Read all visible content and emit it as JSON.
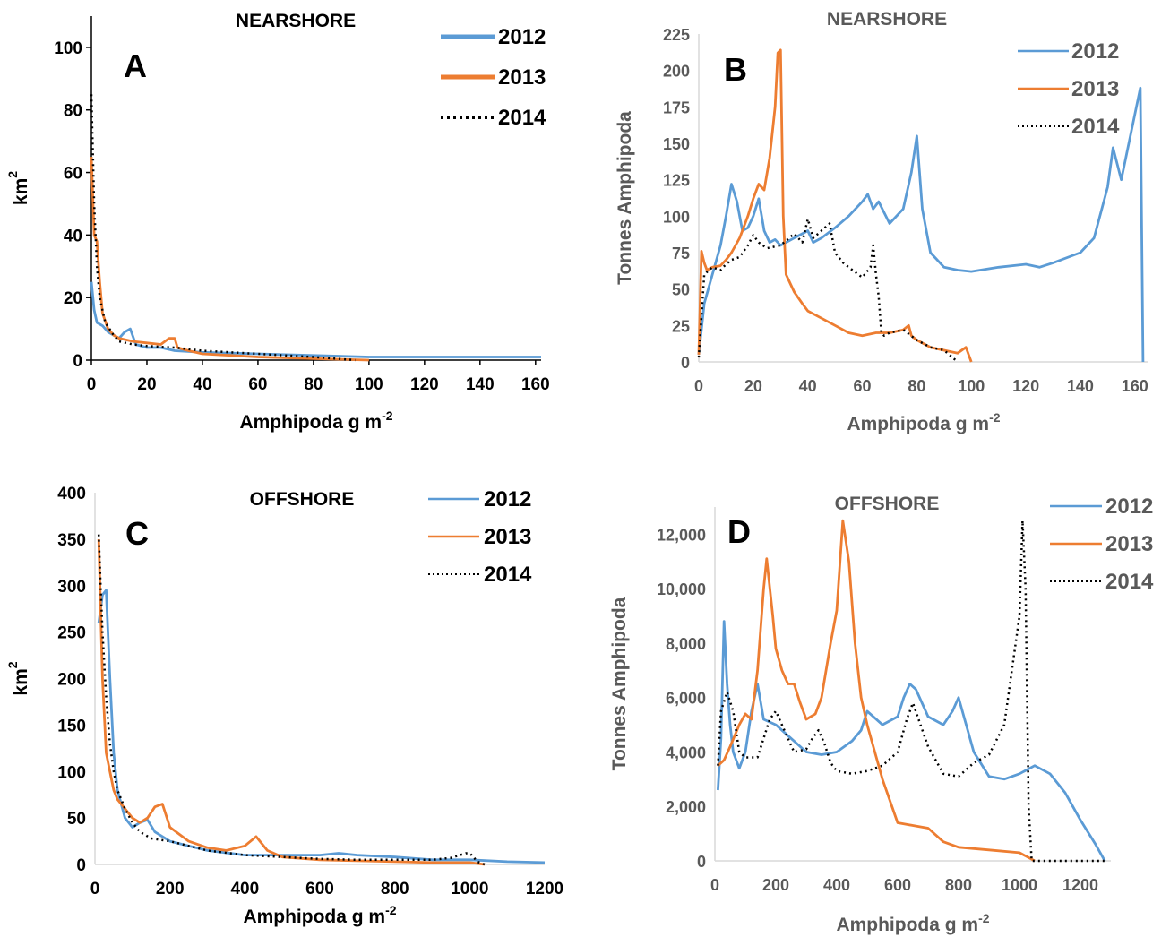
{
  "colors": {
    "s2012": "#5b9bd5",
    "s2013": "#ed7d31",
    "s2014": "#000000"
  },
  "chart_data": [
    {
      "id": "A",
      "type": "line",
      "panel_letter": "A",
      "title": "NEARSHORE",
      "xlabel": "Amphipoda g m",
      "xlabel_sup": "-2",
      "ylabel": "km",
      "ylabel_sup": "2",
      "xlim": [
        0,
        162
      ],
      "ylim": [
        0,
        110
      ],
      "xticks": [
        0,
        20,
        40,
        60,
        80,
        100,
        120,
        140,
        160
      ],
      "xtick_labels": [
        "0",
        "20",
        "40",
        "60",
        "80",
        "100",
        "120",
        "140",
        "160"
      ],
      "yticks": [
        0,
        20,
        40,
        60,
        80,
        100
      ],
      "ytick_labels": [
        "0",
        "20",
        "40",
        "60",
        "80",
        "100"
      ],
      "grid": false,
      "legend": "top-right",
      "series": [
        {
          "name": "2012",
          "style": "solid",
          "color": "#5b9bd5",
          "x": [
            0,
            1,
            2,
            4,
            6,
            8,
            10,
            12,
            14,
            16,
            20,
            25,
            30,
            40,
            60,
            80,
            100,
            120,
            140,
            162
          ],
          "y": [
            25,
            16,
            12,
            11,
            9,
            8,
            7,
            9,
            10,
            5,
            4,
            4,
            3,
            2.5,
            2,
            1.5,
            1,
            1,
            1,
            1
          ]
        },
        {
          "name": "2013",
          "style": "solid",
          "color": "#ed7d31",
          "x": [
            0,
            1,
            2,
            3,
            4,
            6,
            8,
            10,
            15,
            20,
            25,
            28,
            30,
            31,
            35,
            40,
            60,
            80,
            100
          ],
          "y": [
            65,
            40,
            38,
            25,
            15,
            10,
            8,
            7,
            6,
            5.5,
            5,
            7,
            7,
            4,
            3,
            2,
            1,
            0.5,
            0
          ]
        },
        {
          "name": "2014",
          "style": "dotted",
          "color": "#000000",
          "x": [
            0,
            1,
            2,
            3,
            5,
            8,
            10,
            15,
            20,
            30,
            40,
            60,
            80,
            95
          ],
          "y": [
            85,
            50,
            30,
            20,
            12,
            8,
            6,
            5,
            4.5,
            4,
            3,
            2,
            1,
            0
          ]
        }
      ]
    },
    {
      "id": "B",
      "type": "line",
      "panel_letter": "B",
      "title": "NEARSHORE",
      "xlabel": "Amphipoda g m",
      "xlabel_sup": "-2",
      "ylabel": "Tonnes Amphipoda",
      "ylabel_sup": "",
      "xlim": [
        0,
        165
      ],
      "ylim": [
        0,
        225
      ],
      "xticks": [
        0,
        20,
        40,
        60,
        80,
        100,
        120,
        140,
        160
      ],
      "xtick_labels": [
        "0",
        "20",
        "40",
        "60",
        "80",
        "100",
        "120",
        "140",
        "160"
      ],
      "yticks": [
        0,
        25,
        50,
        75,
        100,
        125,
        150,
        175,
        200,
        225
      ],
      "ytick_labels": [
        "0",
        "25",
        "50",
        "75",
        "100",
        "125",
        "150",
        "175",
        "200",
        "225"
      ],
      "grid": false,
      "legend": "top-right",
      "series": [
        {
          "name": "2012",
          "style": "solid",
          "color": "#5b9bd5",
          "x": [
            0,
            2,
            5,
            8,
            10,
            12,
            14,
            16,
            18,
            20,
            22,
            24,
            26,
            28,
            30,
            35,
            40,
            42,
            45,
            50,
            55,
            60,
            62,
            64,
            66,
            70,
            75,
            78,
            80,
            82,
            85,
            90,
            95,
            100,
            110,
            120,
            125,
            130,
            140,
            145,
            150,
            152,
            155,
            160,
            162,
            163
          ],
          "y": [
            5,
            40,
            60,
            80,
            100,
            122,
            110,
            90,
            92,
            100,
            112,
            90,
            82,
            84,
            80,
            85,
            90,
            82,
            85,
            92,
            100,
            110,
            115,
            105,
            110,
            95,
            105,
            130,
            155,
            105,
            75,
            65,
            63,
            62,
            65,
            67,
            65,
            68,
            75,
            85,
            120,
            147,
            125,
            170,
            188,
            0
          ]
        },
        {
          "name": "2013",
          "style": "solid",
          "color": "#ed7d31",
          "x": [
            0,
            1,
            2,
            3,
            5,
            8,
            10,
            12,
            15,
            18,
            20,
            22,
            24,
            26,
            28,
            29,
            30,
            31,
            32,
            35,
            38,
            40,
            45,
            50,
            55,
            60,
            65,
            70,
            75,
            77,
            78,
            80,
            85,
            90,
            95,
            98,
            100
          ],
          "y": [
            5,
            76,
            68,
            63,
            65,
            66,
            70,
            75,
            85,
            100,
            112,
            122,
            118,
            140,
            175,
            212,
            214,
            100,
            60,
            48,
            40,
            35,
            30,
            25,
            20,
            18,
            20,
            20,
            22,
            25,
            18,
            15,
            10,
            8,
            6,
            10,
            0
          ]
        },
        {
          "name": "2014",
          "style": "dotted",
          "color": "#000000",
          "x": [
            0,
            2,
            5,
            8,
            10,
            12,
            15,
            18,
            20,
            22,
            25,
            30,
            35,
            38,
            40,
            42,
            45,
            48,
            50,
            53,
            55,
            60,
            63,
            64,
            65,
            66,
            67,
            68,
            70,
            75,
            80,
            85,
            90,
            95
          ],
          "y": [
            3,
            60,
            65,
            63,
            67,
            70,
            72,
            80,
            87,
            82,
            78,
            80,
            88,
            82,
            98,
            85,
            90,
            95,
            75,
            68,
            65,
            58,
            65,
            80,
            60,
            45,
            20,
            18,
            20,
            22,
            15,
            10,
            8,
            0
          ]
        }
      ]
    },
    {
      "id": "C",
      "type": "line",
      "panel_letter": "C",
      "title": "OFFSHORE",
      "xlabel": "Amphipoda g m",
      "xlabel_sup": "-2",
      "ylabel": "km",
      "ylabel_sup": "2",
      "xlim": [
        0,
        1200
      ],
      "ylim": [
        0,
        400
      ],
      "xticks": [
        0,
        200,
        400,
        600,
        800,
        1000,
        1200
      ],
      "xtick_labels": [
        "0",
        "200",
        "400",
        "600",
        "800",
        "1000",
        "1200"
      ],
      "yticks": [
        0,
        50,
        100,
        150,
        200,
        250,
        300,
        350,
        400
      ],
      "ytick_labels": [
        "0",
        "50",
        "100",
        "150",
        "200",
        "250",
        "300",
        "350",
        "400"
      ],
      "grid": false,
      "legend": "top-right",
      "series": [
        {
          "name": "2012",
          "style": "solid",
          "color": "#5b9bd5",
          "x": [
            10,
            20,
            30,
            40,
            50,
            60,
            80,
            100,
            120,
            140,
            160,
            200,
            250,
            300,
            400,
            500,
            600,
            650,
            700,
            800,
            900,
            1000,
            1100,
            1200
          ],
          "y": [
            260,
            290,
            295,
            200,
            120,
            80,
            50,
            40,
            45,
            48,
            35,
            25,
            20,
            15,
            10,
            10,
            10,
            12,
            10,
            8,
            5,
            5,
            3,
            2
          ]
        },
        {
          "name": "2013",
          "style": "solid",
          "color": "#ed7d31",
          "x": [
            10,
            20,
            30,
            40,
            50,
            60,
            80,
            100,
            120,
            140,
            160,
            180,
            200,
            250,
            300,
            350,
            400,
            430,
            460,
            500,
            600,
            700,
            800,
            900,
            1000,
            1040
          ],
          "y": [
            350,
            200,
            120,
            100,
            80,
            70,
            60,
            50,
            45,
            50,
            62,
            65,
            40,
            25,
            18,
            15,
            20,
            30,
            15,
            8,
            5,
            4,
            3,
            2,
            2,
            0
          ]
        },
        {
          "name": "2014",
          "style": "dotted",
          "color": "#000000",
          "x": [
            10,
            15,
            20,
            30,
            40,
            50,
            60,
            80,
            100,
            120,
            150,
            200,
            250,
            300,
            400,
            500,
            600,
            700,
            800,
            900,
            950,
            990,
            1000,
            1010,
            1020,
            1040
          ],
          "y": [
            355,
            300,
            250,
            180,
            130,
            100,
            80,
            60,
            45,
            35,
            28,
            25,
            20,
            15,
            10,
            8,
            6,
            5,
            5,
            5,
            7,
            12,
            12,
            8,
            3,
            0
          ]
        }
      ]
    },
    {
      "id": "D",
      "type": "line",
      "panel_letter": "D",
      "title": "OFFSHORE",
      "xlabel": "Amphipoda g m",
      "xlabel_sup": "-2",
      "ylabel": "Tonnes Amphipoda",
      "ylabel_sup": "",
      "xlim": [
        0,
        1300
      ],
      "ylim": [
        0,
        13000
      ],
      "xticks": [
        0,
        200,
        400,
        600,
        800,
        1000,
        1200
      ],
      "xtick_labels": [
        "0",
        "200",
        "400",
        "600",
        "800",
        "1000",
        "1200"
      ],
      "yticks": [
        0,
        2000,
        4000,
        6000,
        8000,
        10000,
        12000
      ],
      "ytick_labels": [
        "0",
        "2,000",
        "4,000",
        "6,000",
        "8,000",
        "10,000",
        "12,000"
      ],
      "grid": false,
      "legend": "top-right",
      "series": [
        {
          "name": "2012",
          "style": "solid",
          "color": "#5b9bd5",
          "x": [
            10,
            20,
            30,
            40,
            50,
            60,
            80,
            100,
            120,
            140,
            160,
            200,
            250,
            300,
            350,
            400,
            450,
            480,
            500,
            550,
            600,
            620,
            640,
            660,
            700,
            750,
            780,
            800,
            850,
            900,
            950,
            1000,
            1050,
            1100,
            1150,
            1200,
            1250,
            1280
          ],
          "y": [
            2600,
            4500,
            8800,
            6500,
            5000,
            4000,
            3400,
            4000,
            5500,
            6500,
            5200,
            5000,
            4500,
            4000,
            3900,
            4000,
            4400,
            4800,
            5500,
            5000,
            5300,
            6000,
            6500,
            6300,
            5300,
            5000,
            5500,
            6000,
            4000,
            3100,
            3000,
            3200,
            3500,
            3200,
            2500,
            1500,
            600,
            0
          ]
        },
        {
          "name": "2013",
          "style": "solid",
          "color": "#ed7d31",
          "x": [
            10,
            30,
            50,
            80,
            100,
            120,
            140,
            160,
            170,
            190,
            200,
            220,
            240,
            260,
            280,
            300,
            330,
            350,
            380,
            400,
            420,
            440,
            460,
            480,
            500,
            550,
            600,
            650,
            700,
            750,
            800,
            900,
            1000,
            1050
          ],
          "y": [
            3500,
            3700,
            4200,
            5000,
            5400,
            5200,
            7000,
            10000,
            11100,
            9000,
            7800,
            7000,
            6500,
            6500,
            5800,
            5200,
            5400,
            6000,
            8000,
            9200,
            12500,
            11000,
            8000,
            6000,
            5000,
            3000,
            1400,
            1300,
            1200,
            700,
            500,
            400,
            300,
            0
          ]
        },
        {
          "name": "2014",
          "style": "dotted",
          "color": "#000000",
          "x": [
            10,
            20,
            40,
            60,
            80,
            100,
            140,
            160,
            180,
            200,
            220,
            240,
            260,
            300,
            320,
            340,
            360,
            380,
            400,
            450,
            500,
            550,
            600,
            630,
            650,
            700,
            750,
            800,
            850,
            900,
            950,
            1000,
            1010,
            1020,
            1030,
            1040,
            1100,
            1200,
            1290
          ],
          "y": [
            3500,
            5500,
            6200,
            5500,
            4000,
            3800,
            3800,
            4500,
            5200,
            5500,
            5000,
            4500,
            4000,
            4100,
            4500,
            4800,
            4300,
            3600,
            3300,
            3200,
            3300,
            3500,
            4000,
            5200,
            5800,
            4200,
            3200,
            3100,
            3600,
            3900,
            5000,
            9000,
            12500,
            10000,
            2000,
            0,
            0,
            0,
            0
          ]
        }
      ]
    }
  ]
}
